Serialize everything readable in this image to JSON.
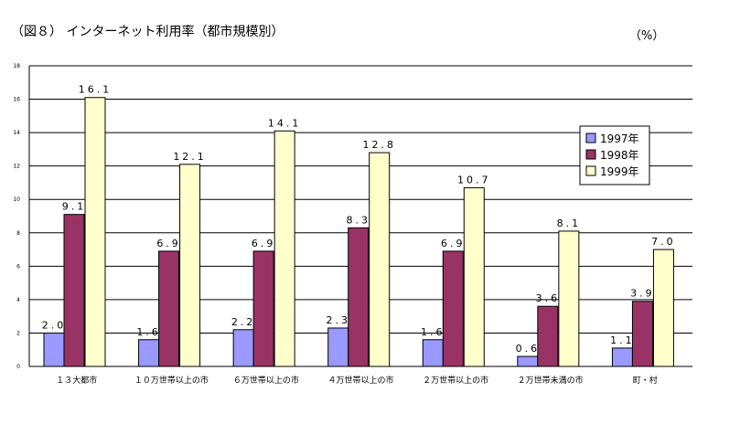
{
  "header": {
    "title": "（図８） インターネット利用率（都市規模別）",
    "unit": "（%）"
  },
  "colors": {
    "1997年": "#9999ff",
    "1998年": "#993366",
    "1999年": "#ffffcc"
  },
  "chart_data": {
    "type": "bar",
    "title": "（図８） インターネット利用率（都市規模別）",
    "unit": "（%）",
    "xlabel": "",
    "ylabel": "",
    "ylim": [
      0,
      18
    ],
    "ytick_step": 2,
    "ytick_labels": [
      "0",
      "2",
      "4",
      "6",
      "8",
      "10",
      "12",
      "14",
      "16",
      "18"
    ],
    "grid": true,
    "legend_position": "right",
    "categories": [
      "１３大都市",
      "１０万世帯以上の市",
      "６万世帯以上の市",
      "４万世帯以上の市",
      "２万世帯以上の市",
      "２万世帯未満の市",
      "町・村"
    ],
    "series": [
      {
        "name": "1997年",
        "values": [
          2.0,
          1.6,
          2.2,
          2.3,
          1.6,
          0.6,
          1.1
        ],
        "labels": [
          "2.0",
          "1.6",
          "2.2",
          "2.3",
          "1.6",
          "0.6",
          "1.1"
        ]
      },
      {
        "name": "1998年",
        "values": [
          9.1,
          6.9,
          6.9,
          8.3,
          6.9,
          3.6,
          3.9
        ],
        "labels": [
          "9.1",
          "6.9",
          "6.9",
          "8.3",
          "6.9",
          "3.6",
          "3.9"
        ]
      },
      {
        "name": "1999年",
        "values": [
          16.1,
          12.1,
          14.1,
          12.8,
          10.7,
          8.1,
          7.0
        ],
        "labels": [
          "16.1",
          "12.1",
          "14.1",
          "12.8",
          "10.7",
          "8.1",
          "7.0"
        ]
      }
    ]
  }
}
